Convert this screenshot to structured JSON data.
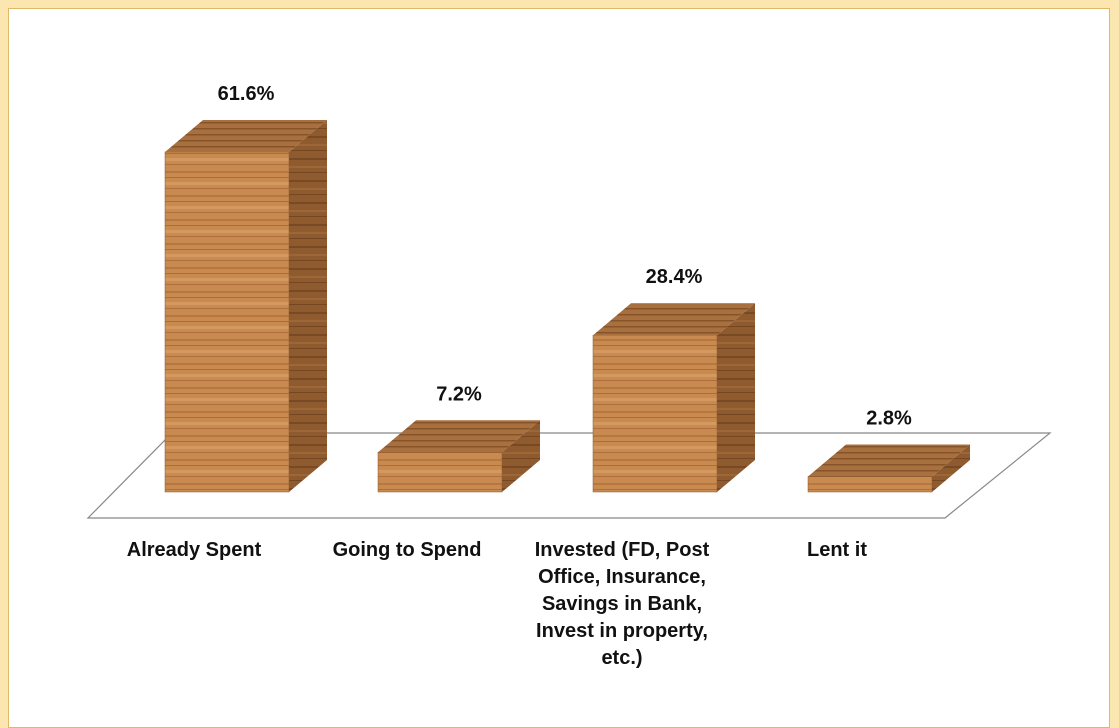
{
  "chart_data": {
    "type": "bar3d",
    "categories": [
      "Already Spent",
      "Going to Spend",
      "Invested (FD, Post Office, Insurance, Savings in Bank, Invest in property, etc.)",
      "Lent it"
    ],
    "values": [
      61.6,
      7.2,
      28.4,
      2.8
    ],
    "value_labels": [
      "61.6%",
      "7.2%",
      "28.4%",
      "2.8%"
    ],
    "color": "#c4844a"
  }
}
